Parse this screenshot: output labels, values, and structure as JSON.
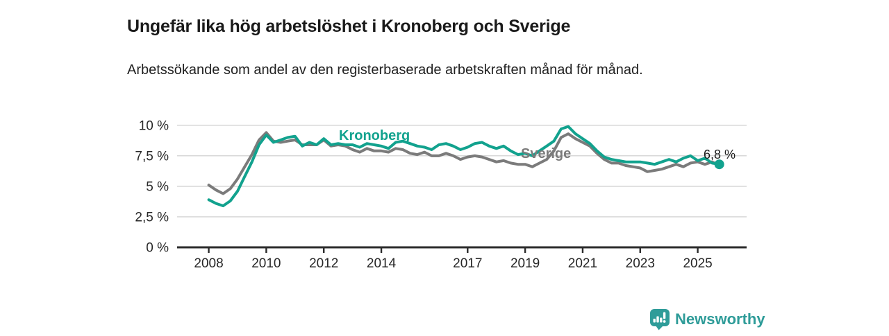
{
  "header": {
    "title": "Ungefär lika hög arbetslöshet i Kronoberg och Sverige",
    "subtitle": "Arbetssökande som andel av den registerbaserade arbetskraften månad för månad."
  },
  "chart_data": {
    "type": "line",
    "unit": "%",
    "title": "Ungefär lika hög arbetslöshet i Kronoberg och Sverige",
    "xlabel": "",
    "ylabel": "",
    "xlim": [
      2006.9,
      2026.7
    ],
    "ylim": [
      0,
      10.5
    ],
    "grid": "horizontal",
    "x": [
      2008.0,
      2008.25,
      2008.5,
      2008.75,
      2009.0,
      2009.25,
      2009.5,
      2009.75,
      2010.0,
      2010.25,
      2010.5,
      2010.75,
      2011.0,
      2011.25,
      2011.5,
      2011.75,
      2012.0,
      2012.25,
      2012.5,
      2012.75,
      2013.0,
      2013.25,
      2013.5,
      2013.75,
      2014.0,
      2014.25,
      2014.5,
      2014.75,
      2015.0,
      2015.25,
      2015.5,
      2015.75,
      2016.0,
      2016.25,
      2016.5,
      2016.75,
      2017.0,
      2017.25,
      2017.5,
      2017.75,
      2018.0,
      2018.25,
      2018.5,
      2018.75,
      2019.0,
      2019.25,
      2019.5,
      2019.75,
      2020.0,
      2020.25,
      2020.5,
      2020.75,
      2021.0,
      2021.25,
      2021.5,
      2021.75,
      2022.0,
      2022.25,
      2022.5,
      2022.75,
      2023.0,
      2023.25,
      2023.5,
      2023.75,
      2024.0,
      2024.25,
      2024.5,
      2024.75,
      2025.0,
      2025.25,
      2025.5,
      2025.75
    ],
    "series": [
      {
        "name": "Kronoberg",
        "color": "#12a28e",
        "values": [
          3.9,
          3.6,
          3.4,
          3.8,
          4.6,
          5.8,
          7.0,
          8.4,
          9.2,
          8.6,
          8.8,
          9.0,
          9.1,
          8.3,
          8.6,
          8.4,
          8.9,
          8.4,
          8.5,
          8.4,
          8.4,
          8.2,
          8.5,
          8.4,
          8.3,
          8.1,
          8.6,
          8.7,
          8.5,
          8.3,
          8.2,
          8.0,
          8.4,
          8.5,
          8.3,
          8.0,
          8.2,
          8.5,
          8.6,
          8.3,
          8.1,
          8.3,
          7.9,
          7.6,
          7.7,
          7.5,
          7.9,
          8.3,
          8.7,
          9.7,
          9.9,
          9.3,
          8.9,
          8.5,
          7.9,
          7.4,
          7.2,
          7.1,
          7.0,
          7.0,
          7.0,
          6.9,
          6.8,
          7.0,
          7.2,
          7.0,
          7.3,
          7.5,
          7.1,
          7.3,
          6.9,
          6.8
        ]
      },
      {
        "name": "Sverige",
        "color": "#7b7b7b",
        "values": [
          5.1,
          4.7,
          4.4,
          4.8,
          5.6,
          6.6,
          7.6,
          8.8,
          9.4,
          8.7,
          8.6,
          8.7,
          8.8,
          8.4,
          8.4,
          8.4,
          8.8,
          8.3,
          8.4,
          8.3,
          8.0,
          7.8,
          8.1,
          7.9,
          7.9,
          7.8,
          8.1,
          8.0,
          7.7,
          7.6,
          7.8,
          7.5,
          7.5,
          7.7,
          7.5,
          7.2,
          7.4,
          7.5,
          7.4,
          7.2,
          7.0,
          7.1,
          6.9,
          6.8,
          6.8,
          6.6,
          6.9,
          7.2,
          7.9,
          9.0,
          9.3,
          8.9,
          8.6,
          8.3,
          7.7,
          7.2,
          6.9,
          6.9,
          6.7,
          6.6,
          6.5,
          6.2,
          6.3,
          6.4,
          6.6,
          6.8,
          6.6,
          6.9,
          7.0,
          6.8,
          7.0,
          6.7
        ]
      }
    ],
    "xticks": [
      {
        "value": 2008,
        "label": "2008"
      },
      {
        "value": 2010,
        "label": "2010"
      },
      {
        "value": 2012,
        "label": "2012"
      },
      {
        "value": 2014,
        "label": "2014"
      },
      {
        "value": 2017,
        "label": "2017"
      },
      {
        "value": 2019,
        "label": "2019"
      },
      {
        "value": 2021,
        "label": "2021"
      },
      {
        "value": 2023,
        "label": "2023"
      },
      {
        "value": 2025,
        "label": "2025"
      }
    ],
    "yticks": [
      {
        "value": 0,
        "label": "0 %"
      },
      {
        "value": 2.5,
        "label": "2,5 %"
      },
      {
        "value": 5,
        "label": "5 %"
      },
      {
        "value": 7.5,
        "label": "7,5 %"
      },
      {
        "value": 10,
        "label": "10 %"
      }
    ],
    "end_label": "6,8 %",
    "end_value": 6.8,
    "legend_position": "inline-labels"
  },
  "colors": {
    "kronoberg": "#12a28e",
    "sverige": "#7b7b7b",
    "grid": "#d9d9d9",
    "axis": "#2b2b2b",
    "tick_text": "#262626",
    "brand": "#2f9c99"
  },
  "footer": {
    "brand": "Newsworthy"
  }
}
